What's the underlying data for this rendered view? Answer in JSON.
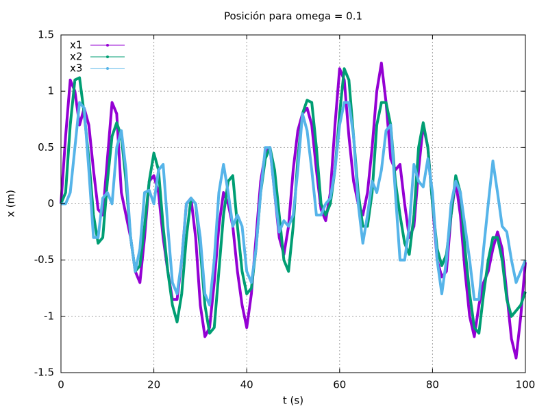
{
  "chart_data": {
    "type": "line",
    "title": "Posición para omega = 0.1",
    "x_label": "t (s)",
    "y_label": "x (m)",
    "x": [
      0,
      1,
      2,
      3,
      4,
      5,
      6,
      7,
      8,
      9,
      10,
      11,
      12,
      13,
      14,
      15,
      16,
      17,
      18,
      19,
      20,
      21,
      22,
      23,
      24,
      25,
      26,
      27,
      28,
      29,
      30,
      31,
      32,
      33,
      34,
      35,
      36,
      37,
      38,
      39,
      40,
      41,
      42,
      43,
      44,
      45,
      46,
      47,
      48,
      49,
      50,
      51,
      52,
      53,
      54,
      55,
      56,
      57,
      58,
      59,
      60,
      61,
      62,
      63,
      64,
      65,
      66,
      67,
      68,
      69,
      70,
      71,
      72,
      73,
      74,
      75,
      76,
      77,
      78,
      79,
      80,
      81,
      82,
      83,
      84,
      85,
      86,
      87,
      88,
      89,
      90,
      91,
      92,
      93,
      94,
      95,
      96,
      97,
      98,
      99,
      100
    ],
    "series": [
      {
        "name": "x1",
        "color": "#9400d3",
        "values": [
          0,
          0.6,
          1.1,
          1.0,
          0.7,
          0.85,
          0.7,
          0.3,
          -0.05,
          -0.1,
          0.4,
          0.9,
          0.8,
          0.1,
          -0.1,
          -0.3,
          -0.6,
          -0.7,
          -0.3,
          0.2,
          0.25,
          0.1,
          -0.3,
          -0.6,
          -0.85,
          -0.85,
          -0.5,
          0,
          0.05,
          -0.3,
          -0.9,
          -1.18,
          -1.1,
          -0.7,
          -0.2,
          0.1,
          0,
          -0.2,
          -0.6,
          -0.9,
          -1.1,
          -0.8,
          -0.3,
          0.2,
          0.45,
          0.5,
          0.1,
          -0.3,
          -0.45,
          -0.2,
          0.3,
          0.65,
          0.8,
          0.85,
          0.7,
          0.3,
          -0.05,
          -0.15,
          0.1,
          0.7,
          1.2,
          1.1,
          0.6,
          0.2,
          0,
          -0.1,
          0.1,
          0.5,
          1.0,
          1.25,
          0.9,
          0.4,
          0.3,
          0.35,
          0,
          -0.3,
          -0.2,
          0.3,
          0.7,
          0.5,
          0,
          -0.5,
          -0.65,
          -0.6,
          -0.1,
          0.2,
          -0.1,
          -0.6,
          -1.0,
          -1.18,
          -0.9,
          -0.7,
          -0.6,
          -0.4,
          -0.25,
          -0.4,
          -0.8,
          -1.2,
          -1.37,
          -1.0,
          -0.52
        ]
      },
      {
        "name": "x2",
        "color": "#009e73",
        "values": [
          0,
          0.1,
          0.7,
          1.1,
          1.12,
          0.8,
          0.4,
          -0.1,
          -0.35,
          -0.3,
          0.2,
          0.6,
          0.72,
          0.6,
          0.2,
          -0.3,
          -0.6,
          -0.55,
          -0.2,
          0.2,
          0.45,
          0.3,
          -0.2,
          -0.6,
          -0.9,
          -1.05,
          -0.8,
          -0.3,
          0.05,
          0,
          -0.4,
          -0.9,
          -1.15,
          -1.1,
          -0.6,
          -0.1,
          0.2,
          0.25,
          -0.2,
          -0.6,
          -0.8,
          -0.75,
          -0.4,
          0.1,
          0.4,
          0.5,
          0.3,
          -0.1,
          -0.5,
          -0.6,
          -0.2,
          0.4,
          0.8,
          0.92,
          0.9,
          0.5,
          0,
          -0.1,
          0,
          0.3,
          0.8,
          1.2,
          1.1,
          0.6,
          0.1,
          -0.2,
          -0.2,
          0.1,
          0.7,
          0.9,
          0.9,
          0.7,
          0.2,
          -0.1,
          -0.35,
          -0.45,
          -0.1,
          0.5,
          0.72,
          0.5,
          0,
          -0.4,
          -0.55,
          -0.45,
          -0.1,
          0.25,
          0.1,
          -0.4,
          -0.8,
          -1.1,
          -1.15,
          -0.8,
          -0.5,
          -0.3,
          -0.3,
          -0.5,
          -0.85,
          -1.0,
          -0.95,
          -0.9,
          -0.78
        ]
      },
      {
        "name": "x3",
        "color": "#56b4e9",
        "values": [
          0,
          0,
          0.1,
          0.5,
          0.9,
          0.85,
          0.3,
          -0.3,
          -0.3,
          0.05,
          0.1,
          0,
          0.5,
          0.65,
          0.3,
          -0.3,
          -0.6,
          -0.4,
          0.1,
          0.12,
          0,
          0.3,
          0.35,
          -0.2,
          -0.7,
          -0.8,
          -0.5,
          0,
          0.05,
          0,
          -0.3,
          -0.8,
          -0.9,
          -0.5,
          0.1,
          0.35,
          0.1,
          -0.2,
          -0.1,
          -0.2,
          -0.6,
          -0.7,
          -0.4,
          0.1,
          0.5,
          0.5,
          0.1,
          -0.25,
          -0.15,
          -0.2,
          -0.1,
          0.3,
          0.8,
          0.65,
          0.3,
          -0.1,
          -0.1,
          0,
          0.05,
          0.3,
          0.7,
          0.9,
          0.9,
          0.6,
          0,
          -0.35,
          -0.1,
          0.2,
          0.1,
          0.3,
          0.65,
          0.7,
          0.1,
          -0.5,
          -0.5,
          -0.2,
          0.35,
          0.2,
          0.15,
          0.4,
          0.1,
          -0.5,
          -0.8,
          -0.5,
          0,
          0.2,
          0.1,
          -0.2,
          -0.5,
          -0.85,
          -0.85,
          -0.4,
          0,
          0.38,
          0.1,
          -0.2,
          -0.25,
          -0.5,
          -0.7,
          -0.6,
          -0.5
        ]
      }
    ],
    "xlim": [
      0,
      100
    ],
    "xticks": [
      0,
      20,
      40,
      60,
      80,
      100
    ],
    "ylim": [
      -1.5,
      1.5
    ],
    "yticks": [
      -1.5,
      -1,
      -0.5,
      0,
      0.5,
      1,
      1.5
    ],
    "grid": true,
    "legend": "top-left"
  }
}
